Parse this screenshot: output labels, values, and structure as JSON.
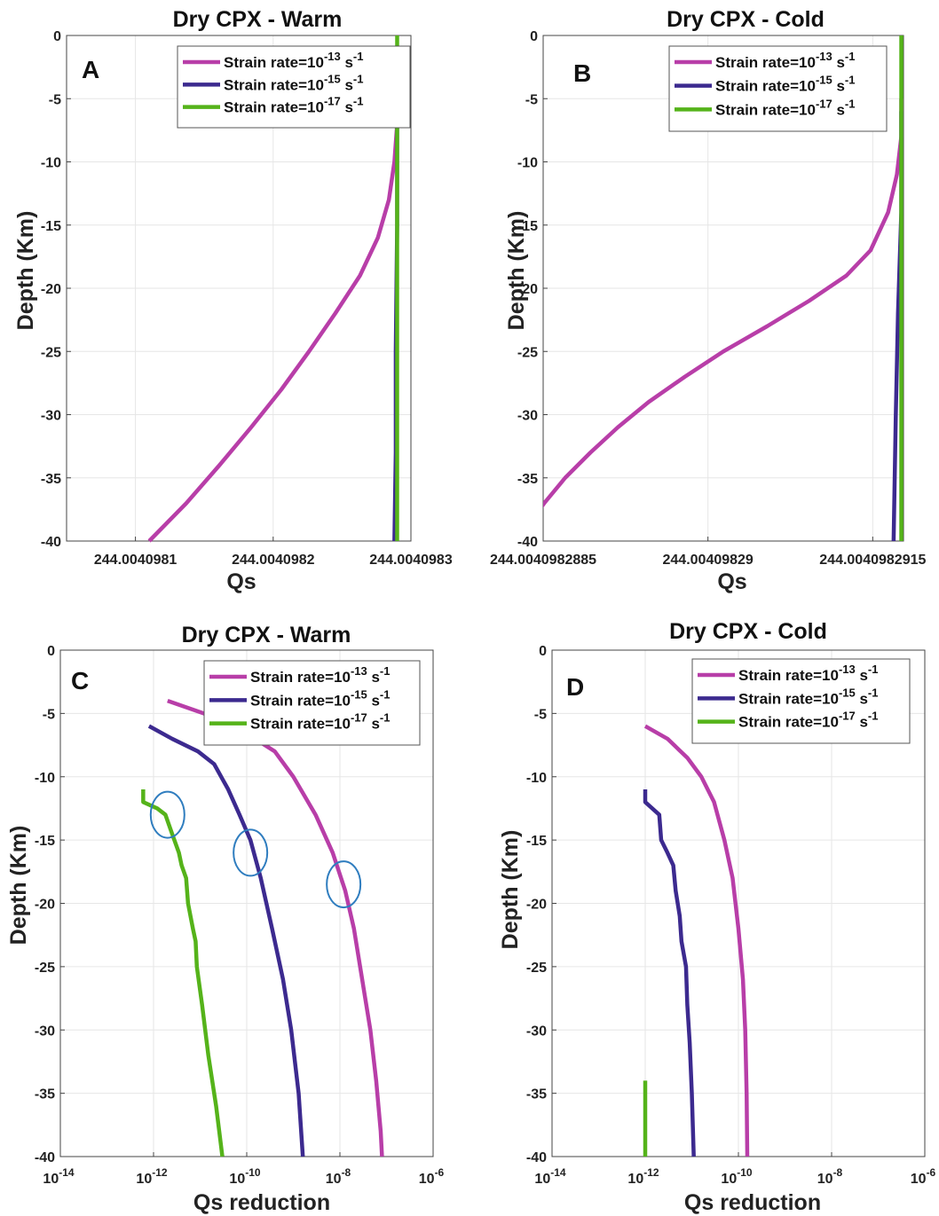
{
  "legend_labels": [
    {
      "prefix": "Strain rate=10",
      "exp": "-13",
      "unit": " s",
      "unit_exp": "-1"
    },
    {
      "prefix": "Strain rate=10",
      "exp": "-15",
      "unit": " s",
      "unit_exp": "-1"
    },
    {
      "prefix": "Strain rate=10",
      "exp": "-17",
      "unit": " s",
      "unit_exp": "-1"
    }
  ],
  "colors": {
    "rate_1e-13": "#b83ea8",
    "rate_1e-15": "#3c2a8f",
    "rate_1e-17": "#55b31a",
    "highlight_circle": "#2f7dbf",
    "grid": "#e6e6e6",
    "axis": "#444444"
  },
  "chart_data": [
    {
      "panel": "A",
      "type": "line",
      "title": "Dry CPX - Warm",
      "xlabel": "Qs",
      "ylabel": "Depth (Km)",
      "xscale": "linear",
      "xlim": [
        244.00409805,
        244.0040983
      ],
      "ylim": [
        -40,
        0
      ],
      "xticks": [
        244.0040981,
        244.0040982,
        244.0040983
      ],
      "xticklabels": [
        "244.0040981",
        "244.0040982",
        "244.0040983"
      ],
      "yticks": [
        0,
        -5,
        -10,
        -15,
        -20,
        -25,
        -30,
        -35,
        -40
      ],
      "grid": true,
      "legend_position": "top-right",
      "series": [
        {
          "color_key": "rate_1e-13",
          "points": [
            [
              244.00409829,
              -5
            ],
            [
              244.00409829,
              -7
            ],
            [
              244.004098288,
              -10
            ],
            [
              244.004098284,
              -13
            ],
            [
              244.004098276,
              -16
            ],
            [
              244.004098263,
              -19
            ],
            [
              244.004098245,
              -22
            ],
            [
              244.004098226,
              -25
            ],
            [
              244.004098206,
              -28
            ],
            [
              244.004098184,
              -31
            ],
            [
              244.004098161,
              -34
            ],
            [
              244.004098137,
              -37
            ],
            [
              244.00409811,
              -40
            ]
          ]
        },
        {
          "color_key": "rate_1e-15",
          "points": [
            [
              244.00409829,
              -5
            ],
            [
              244.00409829,
              -15
            ],
            [
              244.004098289,
              -25
            ],
            [
              244.004098289,
              -33
            ],
            [
              244.004098288,
              -40
            ]
          ]
        },
        {
          "color_key": "rate_1e-17",
          "points": [
            [
              244.00409829,
              0
            ],
            [
              244.00409829,
              -40
            ]
          ]
        }
      ]
    },
    {
      "panel": "B",
      "type": "line",
      "title": "Dry CPX - Cold",
      "xlabel": "Qs",
      "ylabel": "Depth (Km)",
      "xscale": "linear",
      "xlim": [
        244.0040982885,
        244.00409829178
      ],
      "ylim": [
        -40,
        0
      ],
      "xticks": [
        244.0040982885,
        244.00409829,
        244.0040982915
      ],
      "xticklabels": [
        "244.0040982885",
        "244.00409829",
        "244.0040982915"
      ],
      "yticks": [
        0,
        -5,
        -10,
        -15,
        -20,
        -25,
        -30,
        -35,
        -40
      ],
      "grid": true,
      "legend_position": "top-right",
      "series": [
        {
          "color_key": "rate_1e-13",
          "points": [
            [
              244.00409829176,
              -5
            ],
            [
              244.00409829176,
              -8
            ],
            [
              244.00409829172,
              -11
            ],
            [
              244.00409829164,
              -14
            ],
            [
              244.00409829148,
              -17
            ],
            [
              244.00409829126,
              -19
            ],
            [
              244.00409829092,
              -21
            ],
            [
              244.00409829054,
              -23
            ],
            [
              244.00409829014,
              -25
            ],
            [
              244.00409828979,
              -27
            ],
            [
              244.00409828946,
              -29
            ],
            [
              244.00409828918,
              -31
            ],
            [
              244.00409828893,
              -33
            ],
            [
              244.0040982887,
              -35
            ],
            [
              244.00409828851,
              -37
            ],
            [
              244.00409828834,
              -39
            ],
            [
              244.0040982882,
              -40
            ]
          ]
        },
        {
          "color_key": "rate_1e-15",
          "points": [
            [
              244.00409829176,
              -6
            ],
            [
              244.00409829176,
              -14
            ],
            [
              244.00409829173,
              -22
            ],
            [
              244.00409829171,
              -30
            ],
            [
              244.00409829169,
              -40
            ]
          ]
        },
        {
          "color_key": "rate_1e-17",
          "points": [
            [
              244.00409829176,
              0
            ],
            [
              244.00409829176,
              -40
            ]
          ]
        }
      ]
    },
    {
      "panel": "C",
      "type": "line",
      "title": "Dry CPX - Warm",
      "xlabel": "Qs reduction",
      "ylabel": "Depth (Km)",
      "xscale": "log",
      "xlim": [
        1e-14,
        1e-06
      ],
      "ylim": [
        -40,
        0
      ],
      "xticks_exp": [
        -14,
        -12,
        -10,
        -8,
        -6
      ],
      "xtick_base": "10",
      "yticks": [
        0,
        -5,
        -10,
        -15,
        -20,
        -25,
        -30,
        -35,
        -40
      ],
      "grid": true,
      "legend_position": "top-right",
      "highlight_circles": [
        {
          "x": 2e-12,
          "y": -13,
          "label": ""
        },
        {
          "x": 1.2e-10,
          "y": -16,
          "label": ""
        },
        {
          "x": 1.2e-08,
          "y": -18.5,
          "label": ""
        }
      ],
      "series": [
        {
          "color_key": "rate_1e-13",
          "points": [
            [
              2e-12,
              -4
            ],
            [
              1.2e-11,
              -5
            ],
            [
              5e-11,
              -6
            ],
            [
              1.5e-10,
              -7
            ],
            [
              4e-10,
              -8
            ],
            [
              1e-09,
              -10
            ],
            [
              3e-09,
              -13
            ],
            [
              7e-09,
              -16
            ],
            [
              1.3e-08,
              -19
            ],
            [
              2e-08,
              -22
            ],
            [
              3e-08,
              -26
            ],
            [
              4.5e-08,
              -30
            ],
            [
              6e-08,
              -34
            ],
            [
              7.5e-08,
              -38
            ],
            [
              8e-08,
              -40
            ]
          ]
        },
        {
          "color_key": "rate_1e-15",
          "points": [
            [
              8e-13,
              -6
            ],
            [
              2.5e-12,
              -7
            ],
            [
              9e-12,
              -8
            ],
            [
              2e-11,
              -9
            ],
            [
              4e-11,
              -11
            ],
            [
              7e-11,
              -13
            ],
            [
              1.2e-10,
              -15
            ],
            [
              2e-10,
              -18
            ],
            [
              3.5e-10,
              -22
            ],
            [
              6e-10,
              -26
            ],
            [
              9e-10,
              -30
            ],
            [
              1.3e-09,
              -35
            ],
            [
              1.6e-09,
              -40
            ]
          ]
        },
        {
          "color_key": "rate_1e-17",
          "points": [
            [
              6e-13,
              -11
            ],
            [
              6e-13,
              -12
            ],
            [
              1.2e-12,
              -12.5
            ],
            [
              1.8e-12,
              -13
            ],
            [
              2.5e-12,
              -14.5
            ],
            [
              3.5e-12,
              -16
            ],
            [
              4e-12,
              -17
            ],
            [
              5e-12,
              -18
            ],
            [
              5.5e-12,
              -20
            ],
            [
              7e-12,
              -22
            ],
            [
              8e-12,
              -23
            ],
            [
              8.5e-12,
              -25
            ],
            [
              1.1e-11,
              -28
            ],
            [
              1.5e-11,
              -32
            ],
            [
              2.2e-11,
              -36
            ],
            [
              3e-11,
              -40
            ]
          ]
        }
      ]
    },
    {
      "panel": "D",
      "type": "line",
      "title": "Dry CPX - Cold",
      "xlabel": "Qs reduction",
      "ylabel": "Depth (Km)",
      "xscale": "log",
      "xlim": [
        1e-14,
        1e-06
      ],
      "ylim": [
        -40,
        0
      ],
      "xticks_exp": [
        -14,
        -12,
        -10,
        -8,
        -6
      ],
      "xtick_base": "10",
      "yticks": [
        0,
        -5,
        -10,
        -15,
        -20,
        -25,
        -30,
        -35,
        -40
      ],
      "grid": true,
      "legend_position": "top-right",
      "series": [
        {
          "color_key": "rate_1e-13",
          "points": [
            [
              1e-12,
              -6
            ],
            [
              3e-12,
              -7
            ],
            [
              8e-12,
              -8.5
            ],
            [
              1.6e-11,
              -10
            ],
            [
              3e-11,
              -12
            ],
            [
              5e-11,
              -15
            ],
            [
              7.5e-11,
              -18
            ],
            [
              1e-10,
              -22
            ],
            [
              1.25e-10,
              -26
            ],
            [
              1.4e-10,
              -30
            ],
            [
              1.5e-10,
              -35
            ],
            [
              1.55e-10,
              -40
            ]
          ]
        },
        {
          "color_key": "rate_1e-15",
          "points": [
            [
              1e-12,
              -11
            ],
            [
              1e-12,
              -12
            ],
            [
              2e-12,
              -13
            ],
            [
              2.2e-12,
              -15
            ],
            [
              3e-12,
              -16
            ],
            [
              4e-12,
              -17
            ],
            [
              4.5e-12,
              -19
            ],
            [
              5.5e-12,
              -21
            ],
            [
              6e-12,
              -23
            ],
            [
              7.5e-12,
              -25
            ],
            [
              8e-12,
              -28
            ],
            [
              9e-12,
              -31
            ],
            [
              1e-11,
              -35
            ],
            [
              1.1e-11,
              -40
            ]
          ]
        },
        {
          "color_key": "rate_1e-17",
          "points": [
            [
              1e-12,
              -34
            ],
            [
              1e-12,
              -40
            ]
          ]
        }
      ]
    }
  ]
}
